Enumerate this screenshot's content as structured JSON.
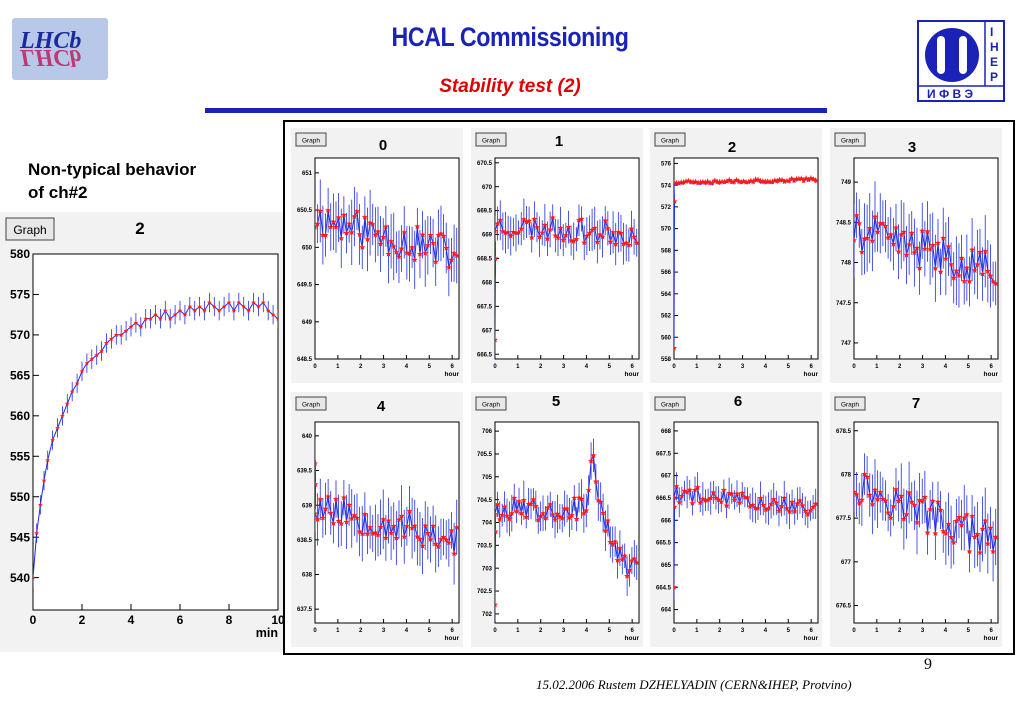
{
  "header": {
    "title": "HCAL Commissioning",
    "subtitle": "Stability test (2)",
    "left_logo_text": "LHCb",
    "right_logo_letters": [
      "И",
      "Ф",
      "В",
      "Э",
      "I",
      "H",
      "E",
      "P"
    ]
  },
  "side_note": {
    "line1": "Non-typical behavior",
    "line2": "of ch#2"
  },
  "colors": {
    "title": "#1a22b8",
    "subtitle": "#e00000",
    "marker": "#ff1a1a",
    "error_bar": "#1f2de0",
    "frame": "#000000",
    "pad_fill": "#f2f2f2"
  },
  "chart_data": [
    {
      "id": "ch2-zoom",
      "type": "scatter",
      "tab_label": "Graph",
      "pad_label": "2",
      "xlabel": "min",
      "xlim": [
        0,
        10
      ],
      "xticks": [
        0,
        2,
        4,
        6,
        8,
        10
      ],
      "ylim": [
        536,
        580
      ],
      "yticks": [
        540,
        545,
        550,
        555,
        560,
        565,
        570,
        575,
        580
      ],
      "series": [
        {
          "x": [
            0.0,
            0.15,
            0.3,
            0.45,
            0.6,
            0.8,
            1.0,
            1.2,
            1.4,
            1.6,
            1.8,
            2.0,
            2.2,
            2.4,
            2.6,
            2.8,
            3.0,
            3.2,
            3.4,
            3.6,
            3.8,
            4.0,
            4.2,
            4.4,
            4.6,
            4.8,
            5.0,
            5.2,
            5.4,
            5.6,
            5.8,
            6.0,
            6.2,
            6.4,
            6.6,
            6.8,
            7.0,
            7.2,
            7.4,
            7.6,
            7.8,
            8.0,
            8.2,
            8.4,
            8.6,
            8.8,
            9.0,
            9.2,
            9.4,
            9.6,
            9.8,
            10.0
          ],
          "y": [
            540.0,
            545.5,
            549.0,
            552.0,
            554.5,
            557.0,
            558.5,
            560.0,
            561.5,
            563.0,
            564.0,
            565.5,
            566.5,
            567.0,
            567.5,
            568.0,
            569.0,
            569.5,
            570.0,
            570.0,
            570.5,
            571.0,
            571.5,
            571.0,
            572.0,
            572.0,
            572.5,
            572.0,
            573.0,
            572.0,
            572.5,
            573.0,
            572.5,
            573.5,
            573.0,
            573.5,
            573.0,
            574.0,
            573.5,
            573.0,
            573.5,
            574.0,
            573.0,
            574.0,
            573.5,
            573.0,
            574.0,
            573.5,
            574.0,
            573.0,
            572.5,
            572.0
          ],
          "err": 1.2
        }
      ]
    },
    {
      "id": "ch0",
      "type": "scatter",
      "tab_label": "Graph",
      "pad_label": "0",
      "xlabel": "hour",
      "xlim": [
        0,
        6.3
      ],
      "xticks": [
        0,
        1,
        2,
        3,
        4,
        5,
        6
      ],
      "ylim": [
        648.5,
        651.2
      ],
      "yticks": [
        648.5,
        649,
        649.5,
        650,
        650.5,
        651
      ],
      "yticklabels": [
        "648.5",
        "649",
        "649.5",
        "650",
        "650.5",
        "651"
      ],
      "series": [
        {
          "kind": "noisy",
          "x_range": [
            0,
            6.2
          ],
          "n": 55,
          "y_start": 650.4,
          "y_end": 649.9,
          "noise": 0.25,
          "err": 0.35,
          "seed": 11
        }
      ]
    },
    {
      "id": "ch1",
      "type": "scatter",
      "tab_label": "Graph",
      "pad_label": "1",
      "xlabel": "hour",
      "xlim": [
        0,
        6.3
      ],
      "xticks": [
        0,
        1,
        2,
        3,
        4,
        5,
        6
      ],
      "ylim": [
        666.4,
        670.6
      ],
      "yticks": [
        666.5,
        667,
        667.5,
        668,
        668.5,
        669,
        669.5,
        670,
        670.5
      ],
      "yticklabels": [
        "666.5",
        "667",
        "667.5",
        "668",
        "668.5",
        "669",
        "669.5",
        "670",
        "670.5"
      ],
      "series": [
        {
          "kind": "noisy",
          "x_range": [
            0,
            6.2
          ],
          "n": 55,
          "y_start": 669.2,
          "y_end": 669.0,
          "noise": 0.25,
          "err": 0.35,
          "seed": 23,
          "early_drop": [
            666.8,
            668.5
          ]
        }
      ]
    },
    {
      "id": "ch2",
      "type": "scatter",
      "tab_label": "Graph",
      "pad_label": "2",
      "xlabel": "hour",
      "xlim": [
        0,
        6.3
      ],
      "xticks": [
        0,
        1,
        2,
        3,
        4,
        5,
        6
      ],
      "ylim": [
        558,
        576.5
      ],
      "yticks": [
        558,
        560,
        562,
        564,
        566,
        568,
        570,
        572,
        574,
        576
      ],
      "yticklabels": [
        "558",
        "560",
        "562",
        "564",
        "566",
        "568",
        "570",
        "572",
        "574",
        "576"
      ],
      "series": [
        {
          "kind": "noisy",
          "x_range": [
            0,
            6.2
          ],
          "n": 60,
          "y_start": 574.3,
          "y_end": 574.5,
          "noise": 0.15,
          "err": 0.2,
          "seed": 37,
          "early_drop": [
            559.0,
            572.5
          ]
        }
      ]
    },
    {
      "id": "ch3",
      "type": "scatter",
      "tab_label": "Graph",
      "pad_label": "3",
      "xlabel": "hour",
      "xlim": [
        0,
        6.3
      ],
      "xticks": [
        0,
        1,
        2,
        3,
        4,
        5,
        6
      ],
      "ylim": [
        746.8,
        749.3
      ],
      "yticks": [
        747,
        747.5,
        748,
        748.5,
        749
      ],
      "yticklabels": [
        "747",
        "747.5",
        "748",
        "748.5",
        "749"
      ],
      "series": [
        {
          "kind": "noisy",
          "x_range": [
            0,
            6.2
          ],
          "n": 55,
          "y_start": 748.4,
          "y_end": 747.9,
          "noise": 0.25,
          "err": 0.35,
          "seed": 41
        }
      ]
    },
    {
      "id": "ch4",
      "type": "scatter",
      "tab_label": "Graph",
      "pad_label": "4",
      "xlabel": "hour",
      "xlim": [
        0,
        6.3
      ],
      "xticks": [
        0,
        1,
        2,
        3,
        4,
        5,
        6
      ],
      "ylim": [
        637.3,
        640.2
      ],
      "yticks": [
        637.5,
        638,
        638.5,
        639,
        639.5,
        640
      ],
      "yticklabels": [
        "637.5",
        "638",
        "638.5",
        "639",
        "639.5",
        "640"
      ],
      "series": [
        {
          "kind": "noisy",
          "x_range": [
            0,
            6.2
          ],
          "n": 55,
          "y_start": 639.0,
          "y_end": 638.5,
          "noise": 0.25,
          "err": 0.35,
          "seed": 53,
          "early_drop": [
            639.6,
            639.3
          ]
        }
      ]
    },
    {
      "id": "ch5",
      "type": "scatter",
      "tab_label": "Graph",
      "pad_label": "5",
      "xlabel": "hour",
      "xlim": [
        0,
        6.3
      ],
      "xticks": [
        0,
        1,
        2,
        3,
        4,
        5,
        6
      ],
      "ylim": [
        701.8,
        706.2
      ],
      "yticks": [
        702,
        702.5,
        703,
        703.5,
        704,
        704.5,
        705,
        705.5,
        706
      ],
      "yticklabels": [
        "702",
        "702.5",
        "703",
        "703.5",
        "704",
        "704.5",
        "705",
        "705.5",
        "706"
      ],
      "series": [
        {
          "kind": "noisy",
          "x_range": [
            0,
            6.2
          ],
          "n": 60,
          "y_start": 704.3,
          "y_end": 704.3,
          "noise": 0.25,
          "err": 0.35,
          "seed": 67,
          "early_drop": [
            702.2,
            703.8
          ],
          "bump_at": 4.3,
          "bump": 1.0,
          "tail_drop": 1.3
        }
      ]
    },
    {
      "id": "ch6",
      "type": "scatter",
      "tab_label": "Graph",
      "pad_label": "6",
      "xlabel": "hour",
      "xlim": [
        0,
        6.3
      ],
      "xticks": [
        0,
        1,
        2,
        3,
        4,
        5,
        6
      ],
      "ylim": [
        663.7,
        668.2
      ],
      "yticks": [
        664,
        664.5,
        665,
        665.5,
        666,
        666.5,
        667,
        667.5,
        668
      ],
      "yticklabels": [
        "664",
        "664.5",
        "665",
        "665.5",
        "666",
        "666.5",
        "667",
        "667.5",
        "668"
      ],
      "series": [
        {
          "kind": "noisy",
          "x_range": [
            0,
            6.2
          ],
          "n": 55,
          "y_start": 666.6,
          "y_end": 666.3,
          "noise": 0.2,
          "err": 0.3,
          "seed": 79,
          "early_drop": [
            664.5,
            666.3
          ]
        }
      ]
    },
    {
      "id": "ch7",
      "type": "scatter",
      "tab_label": "Graph",
      "pad_label": "7",
      "xlabel": "hour",
      "xlim": [
        0,
        6.3
      ],
      "xticks": [
        0,
        1,
        2,
        3,
        4,
        5,
        6
      ],
      "ylim": [
        676.3,
        678.6
      ],
      "yticks": [
        676.5,
        677,
        677.5,
        678,
        678.5
      ],
      "yticklabels": [
        "676.5",
        "677",
        "677.5",
        "678",
        "678.5"
      ],
      "series": [
        {
          "kind": "noisy",
          "x_range": [
            0,
            6.2
          ],
          "n": 55,
          "y_start": 677.9,
          "y_end": 677.2,
          "noise": 0.22,
          "err": 0.3,
          "seed": 97
        }
      ]
    }
  ],
  "footer": {
    "page_number": "9",
    "citation": "15.02.2006 Rustem DZHELYADIN (CERN&IHEP, Protvino)"
  }
}
